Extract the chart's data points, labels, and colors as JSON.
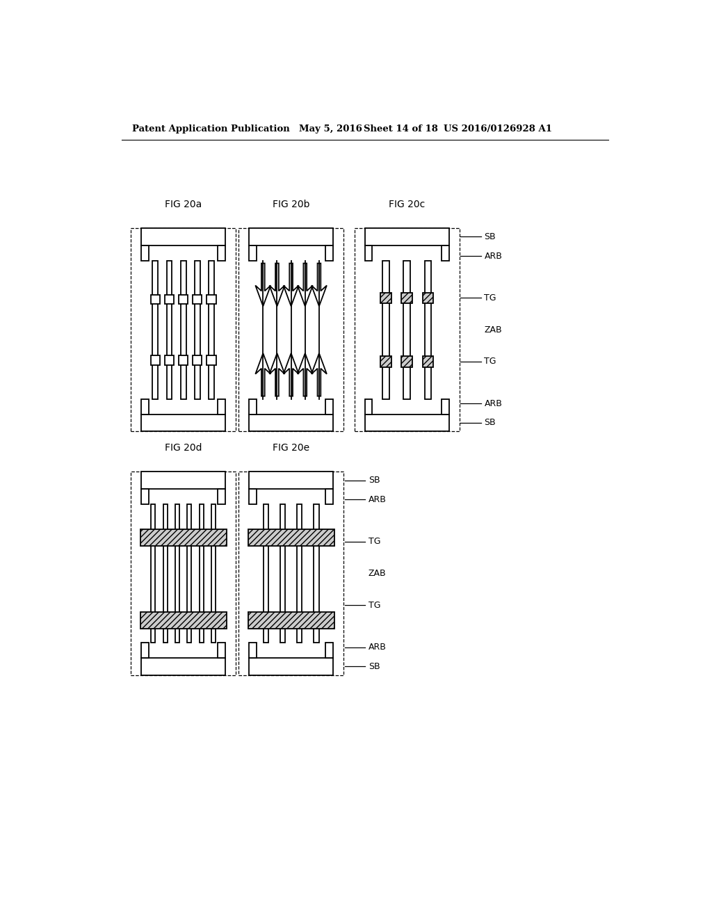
{
  "header_left": "Patent Application Publication",
  "header_right": "US 2016/0126928 A1",
  "bg_color": "#ffffff",
  "line_color": "#000000",
  "layer_labels": [
    "SB",
    "ARB",
    "TG",
    "ZAB",
    "TG",
    "ARB",
    "SB"
  ]
}
